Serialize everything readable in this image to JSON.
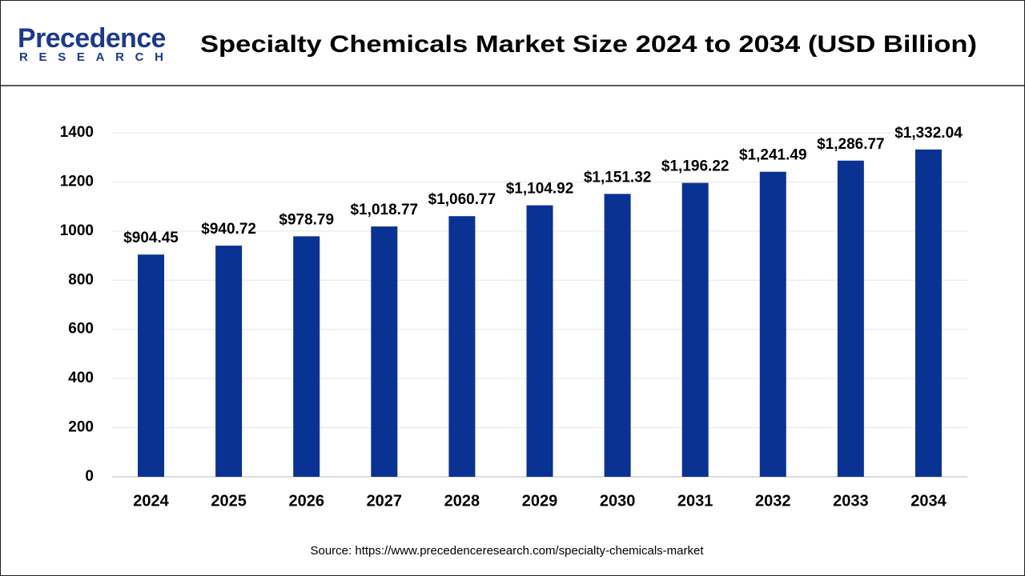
{
  "logo": {
    "name": "Precedence",
    "tagline": "RESEARCH"
  },
  "chart_data": {
    "type": "bar",
    "title": "Specialty Chemicals Market Size 2024 to 2034 (USD Billion)",
    "categories": [
      "2024",
      "2025",
      "2026",
      "2027",
      "2028",
      "2029",
      "2030",
      "2031",
      "2032",
      "2033",
      "2034"
    ],
    "values": [
      904.45,
      940.72,
      978.79,
      1018.77,
      1060.77,
      1104.92,
      1151.32,
      1196.22,
      1241.49,
      1286.77,
      1332.04
    ],
    "value_labels": [
      "$904.45",
      "$940.72",
      "$978.79",
      "$1,018.77",
      "$1,060.77",
      "$1,104.92",
      "$1,151.32",
      "$1,196.22",
      "$1,241.49",
      "$1,286.77",
      "$1,332.04"
    ],
    "color": "#0a3293",
    "ylim": [
      0,
      1400
    ],
    "yticks": [
      0,
      200,
      400,
      600,
      800,
      1000,
      1200,
      1400
    ],
    "grid": true,
    "source": "Source: https://www.precedenceresearch.com/specialty-chemicals-market"
  }
}
